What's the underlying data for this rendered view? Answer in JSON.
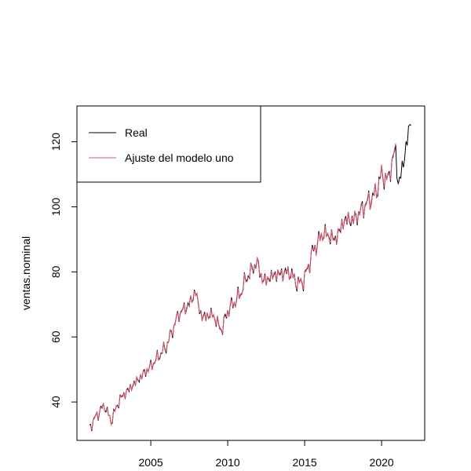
{
  "chart_data": {
    "type": "line",
    "title": "",
    "xlabel": "",
    "ylabel": "ventas.nominal",
    "xlim": [
      2000.2,
      2022.8
    ],
    "ylim": [
      28.2,
      131.0
    ],
    "xticks": [
      2005,
      2010,
      2015,
      2020
    ],
    "yticks": [
      40,
      60,
      80,
      100,
      120
    ],
    "grid": false,
    "legend": {
      "placement": "top-left"
    },
    "series": [
      {
        "name": "Real",
        "color": "#000000",
        "start": 2001.0,
        "end": 2021.9,
        "anchors": [
          [
            2001.0,
            32
          ],
          [
            2001.5,
            36
          ],
          [
            2002.0,
            39
          ],
          [
            2002.4,
            34
          ],
          [
            2003.0,
            41
          ],
          [
            2004.0,
            46
          ],
          [
            2005.0,
            51
          ],
          [
            2006.0,
            57
          ],
          [
            2006.8,
            67
          ],
          [
            2007.5,
            70
          ],
          [
            2007.9,
            74
          ],
          [
            2008.3,
            66
          ],
          [
            2009.0,
            67
          ],
          [
            2009.6,
            62
          ],
          [
            2010.0,
            68
          ],
          [
            2010.8,
            73
          ],
          [
            2011.2,
            78
          ],
          [
            2011.9,
            83
          ],
          [
            2012.3,
            77
          ],
          [
            2013.0,
            79
          ],
          [
            2014.0,
            80
          ],
          [
            2014.6,
            76
          ],
          [
            2015.0,
            78
          ],
          [
            2015.5,
            86
          ],
          [
            2016.2,
            92
          ],
          [
            2017.0,
            90
          ],
          [
            2017.6,
            96
          ],
          [
            2018.2,
            96
          ],
          [
            2019.0,
            101
          ],
          [
            2019.6,
            104
          ],
          [
            2020.0,
            110
          ],
          [
            2020.4,
            108
          ],
          [
            2020.9,
            118
          ],
          [
            2021.1,
            106
          ],
          [
            2021.5,
            116
          ],
          [
            2021.9,
            127
          ]
        ],
        "wiggle": [
          1.6,
          3.2
        ]
      },
      {
        "name": "Ajuste del modelo uno",
        "color": "#DF536B",
        "start": 2001.0,
        "end": 2020.9,
        "anchors": [
          [
            2001.0,
            32
          ],
          [
            2001.5,
            36
          ],
          [
            2002.0,
            39
          ],
          [
            2002.4,
            34
          ],
          [
            2003.0,
            41
          ],
          [
            2004.0,
            46
          ],
          [
            2005.0,
            51
          ],
          [
            2006.0,
            57
          ],
          [
            2006.8,
            67
          ],
          [
            2007.5,
            70
          ],
          [
            2007.9,
            74
          ],
          [
            2008.3,
            66
          ],
          [
            2009.0,
            67
          ],
          [
            2009.6,
            62
          ],
          [
            2010.0,
            68
          ],
          [
            2010.8,
            73
          ],
          [
            2011.2,
            78
          ],
          [
            2011.9,
            83
          ],
          [
            2012.3,
            77
          ],
          [
            2013.0,
            79
          ],
          [
            2014.0,
            80
          ],
          [
            2014.6,
            76
          ],
          [
            2015.0,
            78
          ],
          [
            2015.5,
            86
          ],
          [
            2016.2,
            92
          ],
          [
            2017.0,
            90
          ],
          [
            2017.6,
            96
          ],
          [
            2018.2,
            96
          ],
          [
            2019.0,
            101
          ],
          [
            2019.6,
            104
          ],
          [
            2020.0,
            110
          ],
          [
            2020.4,
            108
          ],
          [
            2020.9,
            118
          ]
        ],
        "wiggle": [
          1.4,
          2.9
        ]
      }
    ]
  }
}
